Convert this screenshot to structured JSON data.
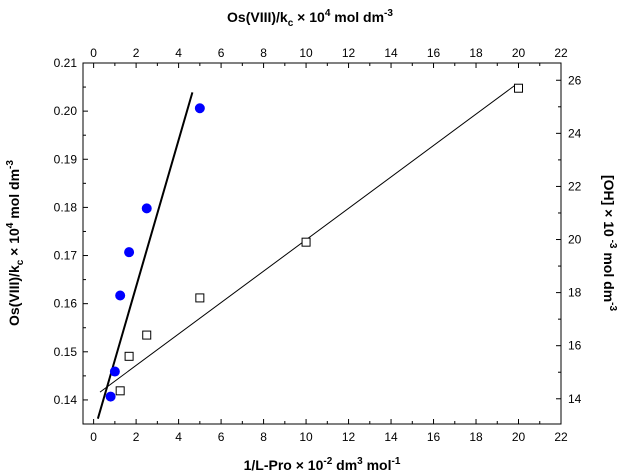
{
  "chart_data": {
    "type": "scatter",
    "axes": {
      "x_bottom": {
        "label": "1/L-Pro × 10",
        "label_exp1": "-2",
        "label_mid": " dm",
        "label_exp2": "3",
        "label_tail": " mol",
        "label_exp3": "-1",
        "range": [
          -0.5,
          22
        ],
        "ticks": [
          "0",
          "2",
          "4",
          "6",
          "8",
          "10",
          "12",
          "14",
          "16",
          "18",
          "20",
          "22"
        ]
      },
      "x_top": {
        "label": "Os(VIII)/k",
        "label_sub": "c",
        "label_mid": " × 10",
        "label_exp1": "4",
        "label_tail": " mol dm",
        "label_exp2": "-3",
        "range": [
          -0.5,
          22
        ],
        "ticks": [
          "0",
          "2",
          "4",
          "6",
          "8",
          "10",
          "12",
          "14",
          "16",
          "18",
          "20",
          "22"
        ]
      },
      "y_left": {
        "label": "Os(VIII)/k",
        "label_sub": "c",
        "label_mid": " × 10",
        "label_exp1": "4",
        "label_tail": " mol dm",
        "label_exp2": "-3",
        "range": [
          0.135,
          0.21
        ],
        "ticks": [
          "0.14",
          "0.15",
          "0.16",
          "0.17",
          "0.18",
          "0.19",
          "0.20",
          "0.21"
        ]
      },
      "y_right": {
        "label": "[OH] × 10",
        "label_exp1": " -3",
        "label_tail": " mol dm",
        "label_exp2": "-3",
        "range": [
          13.05,
          26.65
        ],
        "ticks": [
          "14",
          "16",
          "18",
          "20",
          "22",
          "24",
          "26"
        ]
      }
    },
    "series": [
      {
        "axis_x": "x_bottom",
        "axis_y": "y_left",
        "marker": "filled-circle",
        "color": "#0000ff",
        "points": [
          [
            0.8,
            0.1407
          ],
          [
            1.0,
            0.1459
          ],
          [
            1.25,
            0.1617
          ],
          [
            1.67,
            0.1707
          ],
          [
            2.5,
            0.1798
          ],
          [
            5.0,
            0.2006
          ]
        ],
        "fit": [
          [
            0.2,
            0.1361
          ],
          [
            4.65,
            0.2039
          ]
        ]
      },
      {
        "axis_x": "x_top",
        "axis_y": "y_right",
        "marker": "open-square",
        "color": "#000000",
        "points": [
          [
            1.25,
            14.3
          ],
          [
            1.67,
            15.6
          ],
          [
            2.5,
            16.4
          ],
          [
            5.0,
            17.8
          ],
          [
            10.0,
            19.9
          ],
          [
            20.0,
            25.7
          ]
        ],
        "fit": [
          [
            0.3,
            14.25
          ],
          [
            19.9,
            25.85
          ]
        ]
      }
    ],
    "grid": false,
    "legend": "none"
  }
}
